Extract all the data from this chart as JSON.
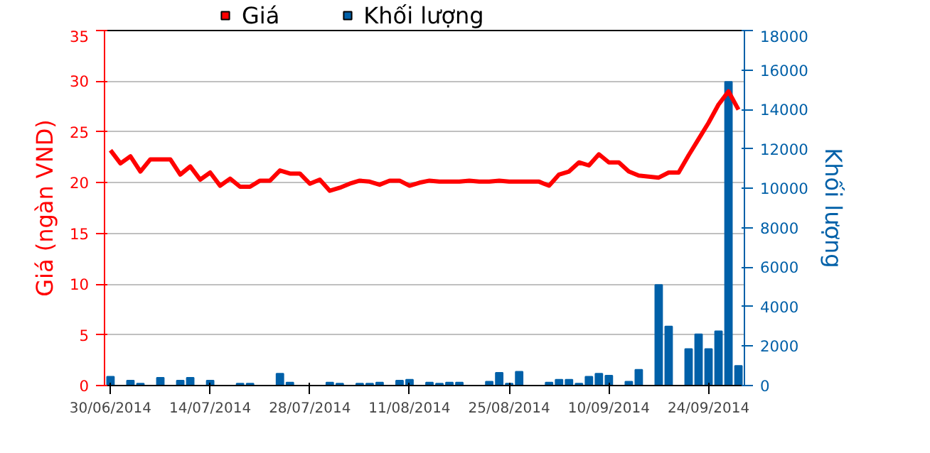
{
  "chart_data": {
    "type": "line",
    "ylabel": "Giá (ngàn VND)",
    "y2label": "Khối lượng",
    "categories": [
      "30/06/2014",
      null,
      null,
      null,
      null,
      null,
      null,
      null,
      null,
      null,
      "14/07/2014",
      null,
      null,
      null,
      null,
      null,
      null,
      null,
      null,
      null,
      "28/07/2014",
      null,
      null,
      null,
      null,
      null,
      null,
      null,
      null,
      null,
      "11/08/2014",
      null,
      null,
      null,
      null,
      null,
      null,
      null,
      null,
      null,
      "25/08/2014",
      null,
      null,
      null,
      null,
      null,
      null,
      null,
      null,
      null,
      "10/09/2014",
      null,
      null,
      null,
      null,
      null,
      null,
      null,
      null,
      null,
      "24/09/2014",
      null,
      null,
      null
    ],
    "series": [
      {
        "name": "Giá",
        "color": "#ff0000",
        "values": [
          23.2,
          21.9,
          22.6,
          21.1,
          22.3,
          22.3,
          22.3,
          20.8,
          21.6,
          20.3,
          21.0,
          19.7,
          20.4,
          19.6,
          19.6,
          20.2,
          20.2,
          21.2,
          20.9,
          20.9,
          19.9,
          20.3,
          19.2,
          19.5,
          19.9,
          20.2,
          20.1,
          19.8,
          20.2,
          20.2,
          19.7,
          20.0,
          20.2,
          20.1,
          20.1,
          20.1,
          20.2,
          20.1,
          20.1,
          20.2,
          20.1,
          20.1,
          20.1,
          20.1,
          19.7,
          20.8,
          21.1,
          22.0,
          21.7,
          22.8,
          22.0,
          22.0,
          21.1,
          20.7,
          20.6,
          20.5,
          21.0,
          21.0,
          22.7,
          24.3,
          25.9,
          27.7,
          29.0,
          27.2
        ]
      },
      {
        "name": "Khối lượng",
        "type": "bar",
        "axis": "y2",
        "color": "#0060a8",
        "values": [
          450,
          0,
          250,
          100,
          0,
          400,
          0,
          250,
          400,
          0,
          250,
          0,
          0,
          100,
          100,
          0,
          0,
          600,
          150,
          0,
          0,
          0,
          150,
          100,
          0,
          100,
          100,
          150,
          0,
          250,
          300,
          0,
          150,
          100,
          150,
          150,
          0,
          0,
          200,
          650,
          100,
          700,
          0,
          0,
          150,
          300,
          300,
          100,
          450,
          600,
          500,
          0,
          200,
          800,
          0,
          5100,
          3000,
          0,
          1850,
          2600,
          1850,
          2750,
          15400,
          1000
        ]
      }
    ],
    "ylim": [
      0,
      35
    ],
    "yticks": [
      0,
      5,
      10,
      15,
      20,
      25,
      30,
      35
    ],
    "y2lim": [
      0,
      18000
    ],
    "y2ticks": [
      0,
      2000,
      4000,
      6000,
      8000,
      10000,
      12000,
      14000,
      16000,
      18000
    ],
    "grid": "y",
    "legend": "top left"
  }
}
